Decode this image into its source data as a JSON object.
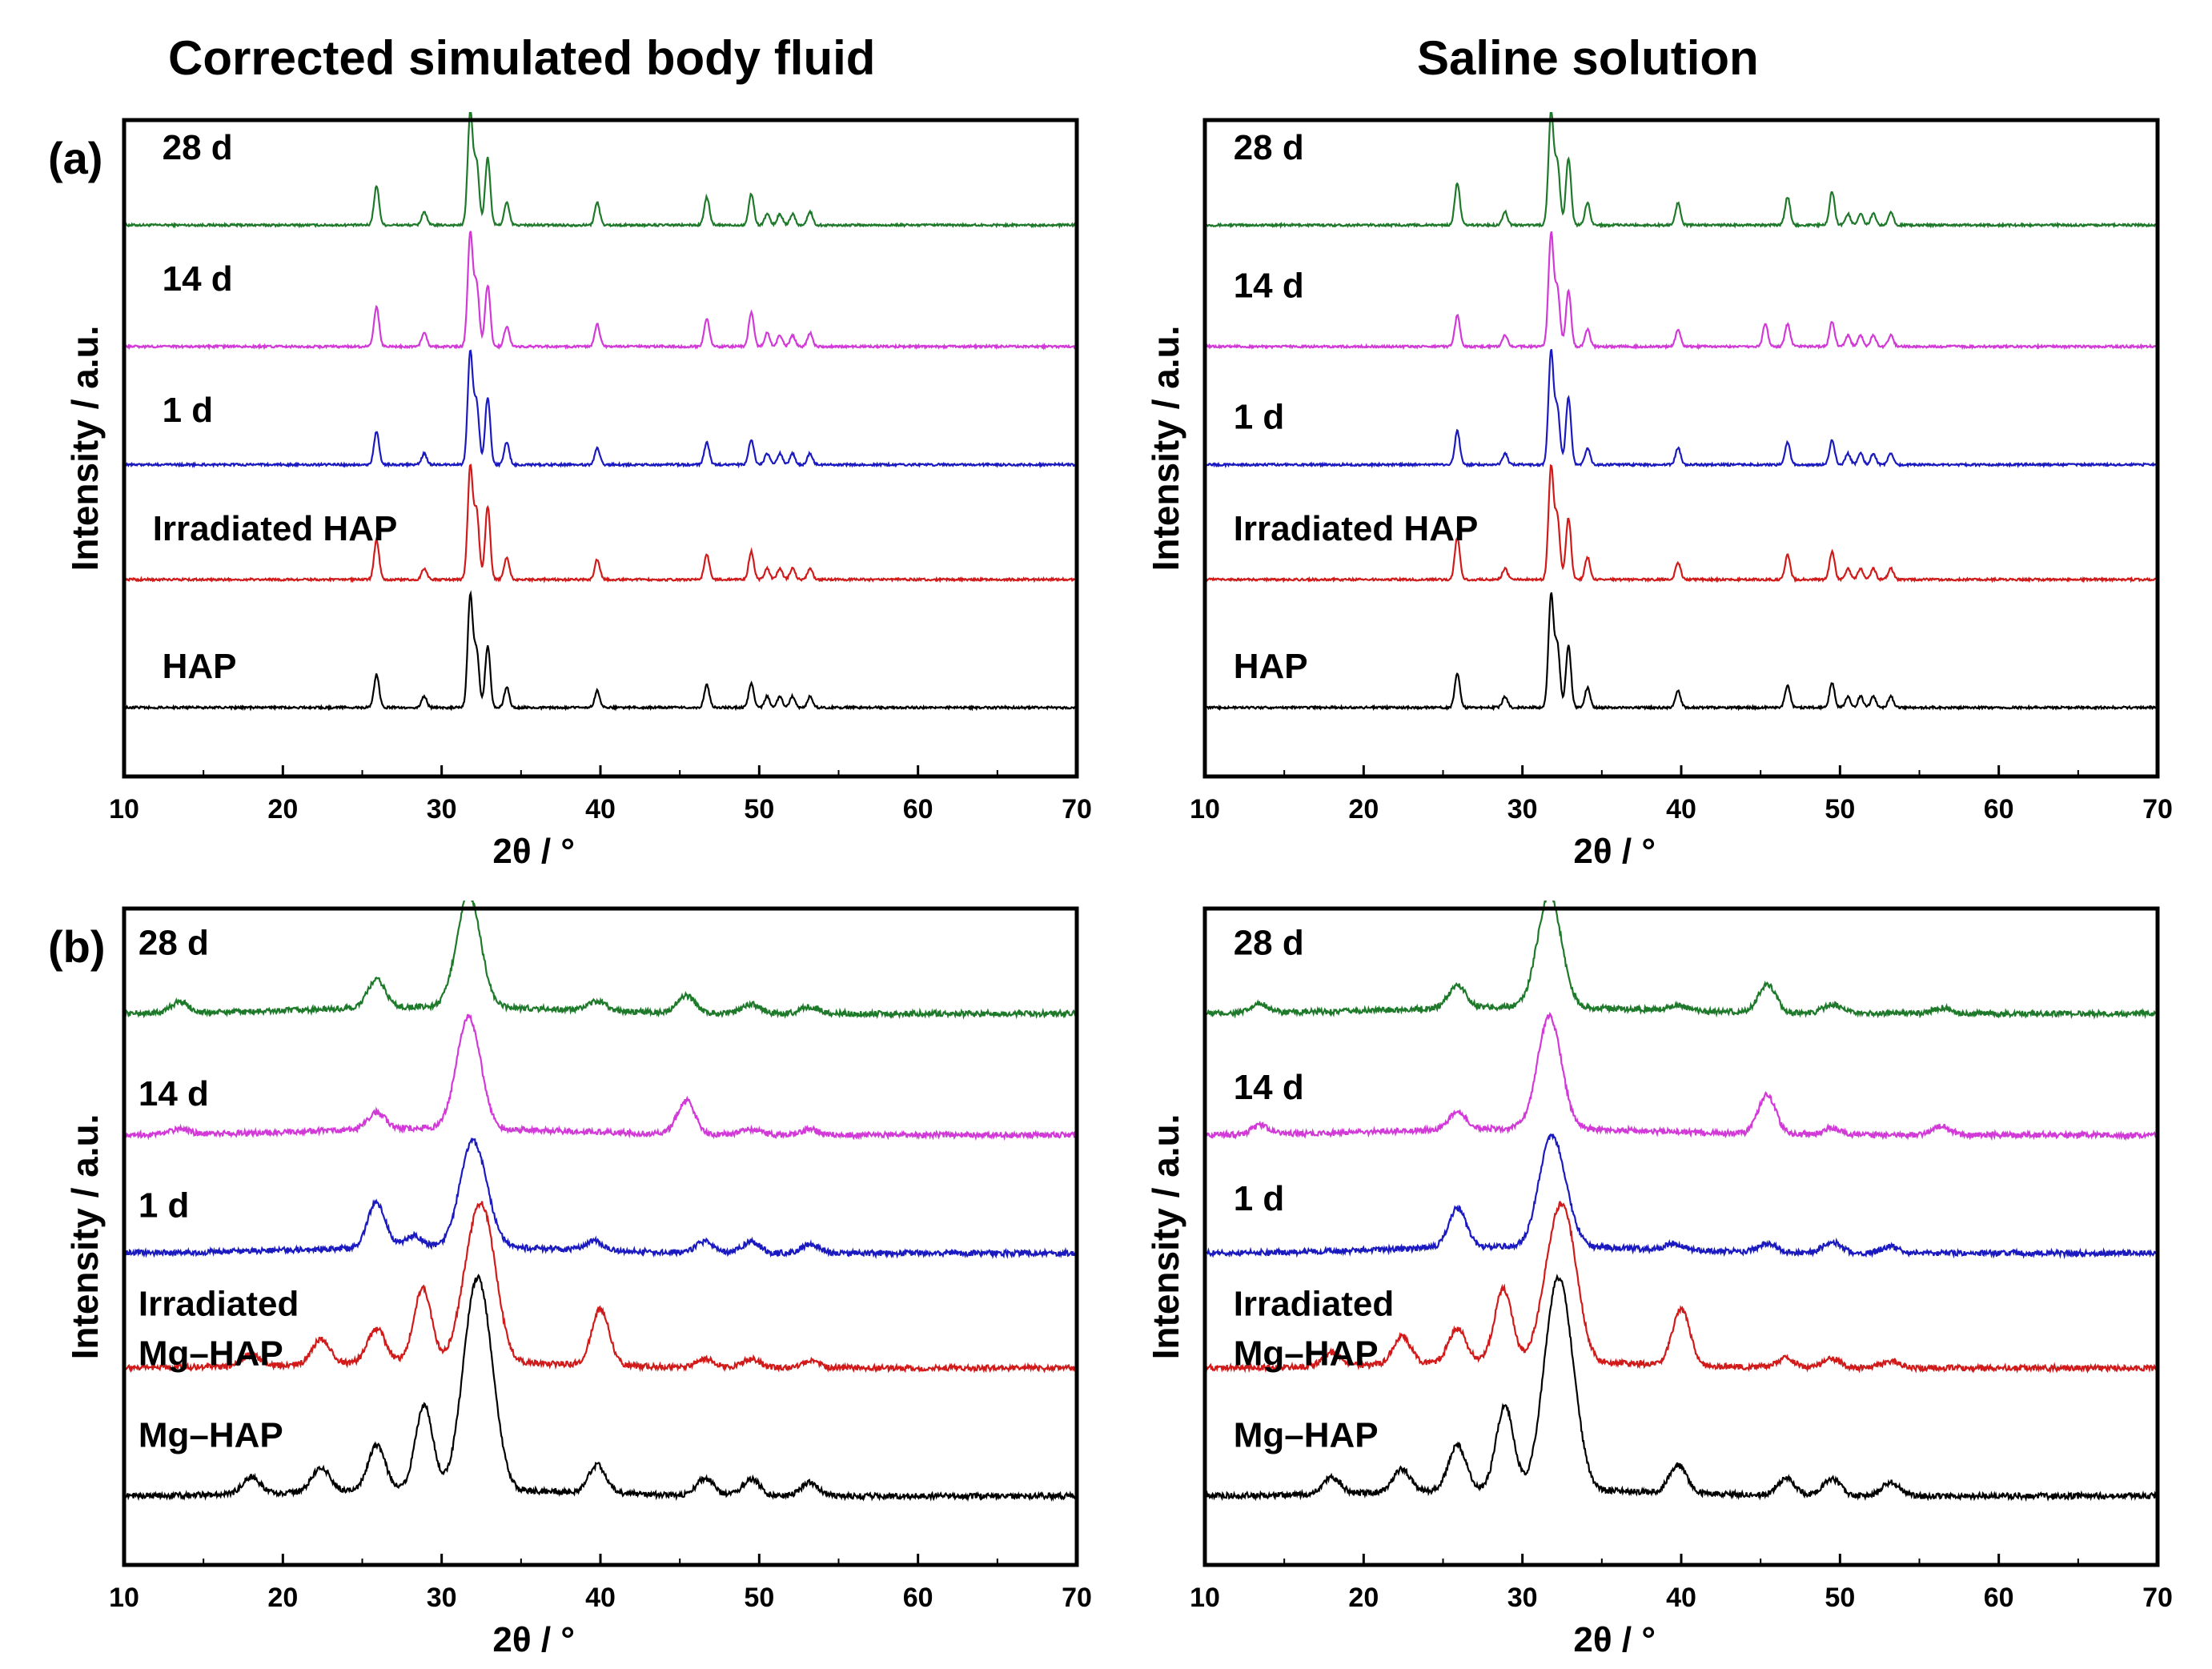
{
  "column_titles": [
    "Corrected simulated body fluid",
    "Saline solution"
  ],
  "panel_labels": [
    "(a)",
    "(b)"
  ],
  "colors": {
    "28 d": "#1e7a2a",
    "14 d": "#d23ad8",
    "1 d": "#1a1ac0",
    "irradiated": "#d11a1a",
    "base": "#000000",
    "frame": "#000000"
  },
  "chart_data": [
    {
      "type": "line",
      "panel": "(a)",
      "column": "Corrected simulated body fluid",
      "xlabel": "2θ / °",
      "ylabel": "Intensity / a.u.",
      "xlim": [
        10,
        70
      ],
      "xticks": [
        10,
        20,
        30,
        40,
        50,
        60,
        70
      ],
      "grid": false,
      "series": [
        {
          "name": "28 d",
          "color": "#1e7a2a",
          "peaks": [
            [
              25.9,
              0.35
            ],
            [
              28.9,
              0.12
            ],
            [
              31.8,
              1.0
            ],
            [
              32.2,
              0.55
            ],
            [
              32.9,
              0.6
            ],
            [
              34.1,
              0.2
            ],
            [
              39.8,
              0.2
            ],
            [
              46.7,
              0.25
            ],
            [
              49.5,
              0.28
            ],
            [
              50.5,
              0.1
            ],
            [
              51.3,
              0.1
            ],
            [
              52.1,
              0.1
            ],
            [
              53.2,
              0.12
            ]
          ]
        },
        {
          "name": "14 d",
          "color": "#d23ad8",
          "peaks": [
            [
              25.9,
              0.35
            ],
            [
              28.9,
              0.12
            ],
            [
              31.8,
              1.0
            ],
            [
              32.2,
              0.55
            ],
            [
              32.9,
              0.55
            ],
            [
              34.1,
              0.18
            ],
            [
              39.8,
              0.2
            ],
            [
              46.7,
              0.25
            ],
            [
              49.5,
              0.3
            ],
            [
              50.5,
              0.12
            ],
            [
              51.3,
              0.1
            ],
            [
              52.1,
              0.1
            ],
            [
              53.2,
              0.12
            ]
          ]
        },
        {
          "name": "1 d",
          "color": "#1a1ac0",
          "peaks": [
            [
              25.9,
              0.3
            ],
            [
              28.9,
              0.1
            ],
            [
              31.8,
              1.0
            ],
            [
              32.2,
              0.55
            ],
            [
              32.9,
              0.6
            ],
            [
              34.1,
              0.2
            ],
            [
              39.8,
              0.15
            ],
            [
              46.7,
              0.2
            ],
            [
              49.5,
              0.22
            ],
            [
              50.5,
              0.1
            ],
            [
              51.3,
              0.1
            ],
            [
              52.1,
              0.1
            ],
            [
              53.2,
              0.1
            ]
          ]
        },
        {
          "name": "Irradiated HAP",
          "color": "#d11a1a",
          "peaks": [
            [
              25.9,
              0.35
            ],
            [
              28.9,
              0.1
            ],
            [
              31.8,
              1.0
            ],
            [
              32.2,
              0.6
            ],
            [
              32.9,
              0.65
            ],
            [
              34.1,
              0.2
            ],
            [
              39.8,
              0.18
            ],
            [
              46.7,
              0.22
            ],
            [
              49.5,
              0.25
            ],
            [
              50.5,
              0.1
            ],
            [
              51.3,
              0.1
            ],
            [
              52.1,
              0.1
            ],
            [
              53.2,
              0.1
            ]
          ]
        },
        {
          "name": "HAP",
          "color": "#000000",
          "peaks": [
            [
              25.9,
              0.3
            ],
            [
              28.9,
              0.1
            ],
            [
              31.8,
              1.0
            ],
            [
              32.2,
              0.5
            ],
            [
              32.9,
              0.55
            ],
            [
              34.1,
              0.18
            ],
            [
              39.8,
              0.15
            ],
            [
              46.7,
              0.2
            ],
            [
              49.5,
              0.22
            ],
            [
              50.5,
              0.1
            ],
            [
              51.3,
              0.1
            ],
            [
              52.1,
              0.1
            ],
            [
              53.2,
              0.1
            ]
          ]
        }
      ]
    },
    {
      "type": "line",
      "panel": "(a)",
      "column": "Saline solution",
      "xlabel": "2θ / °",
      "ylabel": "Intensity / a.u.",
      "xlim": [
        10,
        70
      ],
      "xticks": [
        10,
        20,
        30,
        40,
        50,
        60,
        70
      ],
      "grid": false,
      "series": [
        {
          "name": "28 d",
          "color": "#1e7a2a",
          "peaks": [
            [
              25.9,
              0.38
            ],
            [
              28.9,
              0.12
            ],
            [
              31.8,
              1.0
            ],
            [
              32.2,
              0.55
            ],
            [
              32.9,
              0.6
            ],
            [
              34.1,
              0.2
            ],
            [
              39.8,
              0.2
            ],
            [
              46.7,
              0.25
            ],
            [
              49.5,
              0.3
            ],
            [
              50.5,
              0.1
            ],
            [
              51.3,
              0.1
            ],
            [
              52.1,
              0.1
            ],
            [
              53.2,
              0.12
            ]
          ]
        },
        {
          "name": "14 d",
          "color": "#d23ad8",
          "peaks": [
            [
              25.9,
              0.28
            ],
            [
              28.9,
              0.1
            ],
            [
              31.8,
              1.0
            ],
            [
              32.2,
              0.5
            ],
            [
              32.9,
              0.5
            ],
            [
              34.1,
              0.15
            ],
            [
              39.8,
              0.15
            ],
            [
              45.3,
              0.2
            ],
            [
              46.7,
              0.2
            ],
            [
              49.5,
              0.22
            ],
            [
              50.5,
              0.1
            ],
            [
              51.3,
              0.1
            ],
            [
              52.1,
              0.1
            ],
            [
              53.2,
              0.1
            ]
          ]
        },
        {
          "name": "1 d",
          "color": "#1a1ac0",
          "peaks": [
            [
              25.9,
              0.3
            ],
            [
              28.9,
              0.1
            ],
            [
              31.8,
              1.0
            ],
            [
              32.2,
              0.5
            ],
            [
              32.9,
              0.6
            ],
            [
              34.1,
              0.15
            ],
            [
              39.8,
              0.15
            ],
            [
              46.7,
              0.2
            ],
            [
              49.5,
              0.22
            ],
            [
              50.5,
              0.1
            ],
            [
              51.3,
              0.1
            ],
            [
              52.1,
              0.1
            ],
            [
              53.2,
              0.1
            ]
          ]
        },
        {
          "name": "Irradiated HAP",
          "color": "#d11a1a",
          "peaks": [
            [
              25.9,
              0.38
            ],
            [
              28.9,
              0.1
            ],
            [
              31.8,
              1.0
            ],
            [
              32.2,
              0.55
            ],
            [
              32.9,
              0.55
            ],
            [
              34.1,
              0.2
            ],
            [
              39.8,
              0.15
            ],
            [
              46.7,
              0.22
            ],
            [
              49.5,
              0.25
            ],
            [
              50.5,
              0.1
            ],
            [
              51.3,
              0.1
            ],
            [
              52.1,
              0.1
            ],
            [
              53.2,
              0.1
            ]
          ]
        },
        {
          "name": "HAP",
          "color": "#000000",
          "peaks": [
            [
              25.9,
              0.3
            ],
            [
              28.9,
              0.1
            ],
            [
              31.8,
              1.0
            ],
            [
              32.2,
              0.55
            ],
            [
              32.9,
              0.55
            ],
            [
              34.1,
              0.18
            ],
            [
              39.8,
              0.15
            ],
            [
              46.7,
              0.2
            ],
            [
              49.5,
              0.22
            ],
            [
              50.5,
              0.1
            ],
            [
              51.3,
              0.1
            ],
            [
              52.1,
              0.1
            ],
            [
              53.2,
              0.1
            ]
          ]
        }
      ]
    },
    {
      "type": "line",
      "panel": "(b)",
      "column": "Corrected simulated body fluid",
      "xlabel": "2θ / °",
      "ylabel": "Intensity / a.u.",
      "xlim": [
        10,
        70
      ],
      "xticks": [
        10,
        20,
        30,
        40,
        50,
        60,
        70
      ],
      "grid": false,
      "series": [
        {
          "name": "28 d",
          "color": "#1e7a2a",
          "peaks": [
            [
              13.5,
              0.1
            ],
            [
              25.9,
              0.25
            ],
            [
              31.7,
              1.0
            ],
            [
              39.8,
              0.08
            ],
            [
              45.4,
              0.15
            ],
            [
              49.5,
              0.08
            ],
            [
              53.2,
              0.06
            ]
          ]
        },
        {
          "name": "14 d",
          "color": "#d23ad8",
          "peaks": [
            [
              13.5,
              0.05
            ],
            [
              25.9,
              0.15
            ],
            [
              31.7,
              1.0
            ],
            [
              45.4,
              0.3
            ],
            [
              49.5,
              0.05
            ],
            [
              53.2,
              0.05
            ]
          ]
        },
        {
          "name": "1 d",
          "color": "#1a1ac0",
          "peaks": [
            [
              25.9,
              0.4
            ],
            [
              28.2,
              0.1
            ],
            [
              31.8,
              0.75
            ],
            [
              32.6,
              0.3
            ],
            [
              39.6,
              0.08
            ],
            [
              46.6,
              0.1
            ],
            [
              49.5,
              0.1
            ],
            [
              53.2,
              0.08
            ]
          ]
        },
        {
          "name": "Irradiated Mg–HAP",
          "color": "#d11a1a",
          "peaks": [
            [
              18.0,
              0.1
            ],
            [
              22.4,
              0.22
            ],
            [
              25.9,
              0.3
            ],
            [
              28.8,
              0.65
            ],
            [
              31.7,
              0.5
            ],
            [
              32.3,
              0.45
            ],
            [
              32.9,
              0.8
            ],
            [
              40.0,
              0.5
            ],
            [
              46.6,
              0.08
            ],
            [
              49.5,
              0.08
            ],
            [
              53.2,
              0.06
            ]
          ]
        },
        {
          "name": "Mg–HAP",
          "color": "#000000",
          "peaks": [
            [
              18.0,
              0.15
            ],
            [
              22.4,
              0.22
            ],
            [
              25.9,
              0.4
            ],
            [
              28.9,
              0.75
            ],
            [
              31.8,
              0.85
            ],
            [
              32.3,
              0.7
            ],
            [
              32.9,
              0.7
            ],
            [
              39.8,
              0.25
            ],
            [
              46.6,
              0.15
            ],
            [
              49.5,
              0.15
            ],
            [
              53.2,
              0.12
            ]
          ]
        }
      ]
    },
    {
      "type": "line",
      "panel": "(b)",
      "column": "Saline solution",
      "xlabel": "2θ / °",
      "ylabel": "Intensity / a.u.",
      "xlim": [
        10,
        70
      ],
      "xticks": [
        10,
        20,
        30,
        40,
        50,
        60,
        70
      ],
      "grid": false,
      "series": [
        {
          "name": "28 d",
          "color": "#1e7a2a",
          "peaks": [
            [
              13.5,
              0.08
            ],
            [
              25.9,
              0.2
            ],
            [
              31.7,
              1.0
            ],
            [
              39.8,
              0.05
            ],
            [
              45.4,
              0.25
            ],
            [
              49.5,
              0.08
            ],
            [
              56.4,
              0.05
            ]
          ]
        },
        {
          "name": "14 d",
          "color": "#d23ad8",
          "peaks": [
            [
              13.5,
              0.08
            ],
            [
              25.9,
              0.15
            ],
            [
              31.7,
              1.0
            ],
            [
              45.4,
              0.35
            ],
            [
              49.5,
              0.06
            ],
            [
              56.4,
              0.08
            ]
          ]
        },
        {
          "name": "1 d",
          "color": "#1a1ac0",
          "peaks": [
            [
              25.9,
              0.35
            ],
            [
              31.7,
              0.8
            ],
            [
              32.5,
              0.3
            ],
            [
              39.6,
              0.06
            ],
            [
              45.4,
              0.08
            ],
            [
              49.5,
              0.1
            ],
            [
              53.2,
              0.06
            ]
          ]
        },
        {
          "name": "Irradiated Mg–HAP",
          "color": "#d11a1a",
          "peaks": [
            [
              18.0,
              0.12
            ],
            [
              22.4,
              0.25
            ],
            [
              25.9,
              0.3
            ],
            [
              28.8,
              0.65
            ],
            [
              31.7,
              0.5
            ],
            [
              32.3,
              0.45
            ],
            [
              32.9,
              0.8
            ],
            [
              40.0,
              0.5
            ],
            [
              46.6,
              0.08
            ],
            [
              49.5,
              0.08
            ],
            [
              53.2,
              0.06
            ]
          ]
        },
        {
          "name": "Mg–HAP",
          "color": "#000000",
          "peaks": [
            [
              18.0,
              0.15
            ],
            [
              22.4,
              0.2
            ],
            [
              25.9,
              0.4
            ],
            [
              28.9,
              0.75
            ],
            [
              31.8,
              0.85
            ],
            [
              32.3,
              0.7
            ],
            [
              32.9,
              0.7
            ],
            [
              39.8,
              0.25
            ],
            [
              46.6,
              0.15
            ],
            [
              49.5,
              0.15
            ],
            [
              53.2,
              0.12
            ]
          ]
        }
      ]
    }
  ]
}
